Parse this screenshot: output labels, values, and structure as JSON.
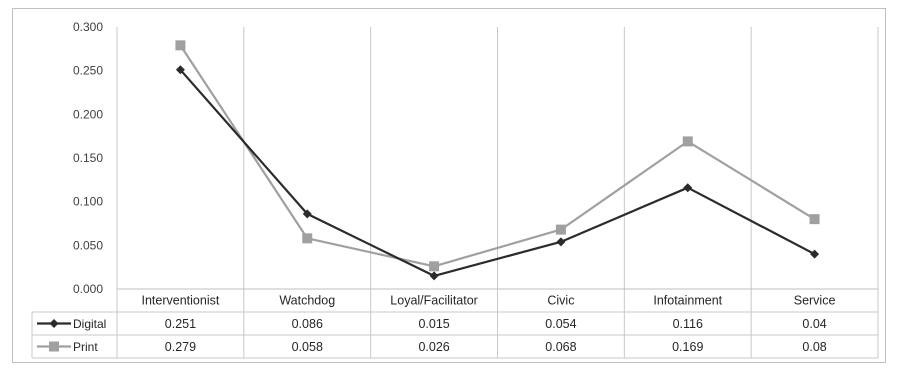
{
  "chart_data": {
    "type": "line",
    "categories": [
      "Interventionist",
      "Watchdog",
      "Loyal/Facilitator",
      "Civic",
      "Infotainment",
      "Service"
    ],
    "series": [
      {
        "name": "Digital",
        "values": [
          0.251,
          0.086,
          0.015,
          0.054,
          0.116,
          0.04
        ],
        "labels": [
          "0.251",
          "0.086",
          "0.015",
          "0.054",
          "0.116",
          "0.04"
        ],
        "color": "#2b2b2b",
        "marker": "diamond"
      },
      {
        "name": "Print",
        "values": [
          0.279,
          0.058,
          0.026,
          0.068,
          0.169,
          0.08
        ],
        "labels": [
          "0.279",
          "0.058",
          "0.026",
          "0.068",
          "0.169",
          "0.08"
        ],
        "color": "#a0a0a0",
        "marker": "square"
      }
    ],
    "title": "",
    "xlabel": "",
    "ylabel": "",
    "ylim": [
      0,
      0.3
    ],
    "yticks": [
      "0.000",
      "0.050",
      "0.100",
      "0.150",
      "0.200",
      "0.250",
      "0.300"
    ],
    "grid": "vertical",
    "legend": "data-table"
  }
}
